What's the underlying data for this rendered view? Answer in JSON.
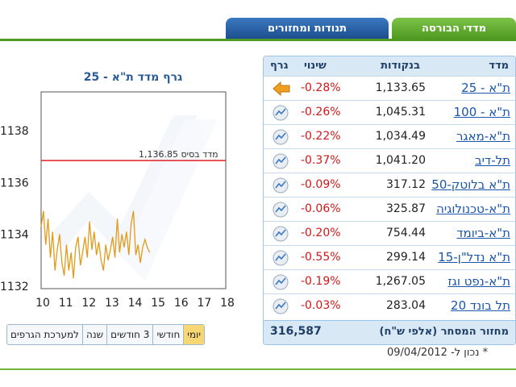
{
  "tabs": {
    "indices": "מדדי הבורסה",
    "movers": "תנודות ומחזורים"
  },
  "chart": {
    "title": "גרף מדד ת\"א - 25",
    "base_label": "מדד בסיס 1,136.85"
  },
  "chart_data": {
    "type": "line",
    "title": "גרף מדד ת\"א - 25",
    "x_ticks": [
      "10",
      "11",
      "12",
      "13",
      "14",
      "15",
      "16",
      "17",
      "18"
    ],
    "y_ticks": [
      "1132",
      "1134",
      "1136",
      "1138"
    ],
    "xlim": [
      10,
      18
    ],
    "ylim": [
      1131.9,
      1139.5
    ],
    "base_value": 1136.85,
    "series": [
      {
        "x": [
          10.0,
          10.1,
          10.2,
          10.3,
          10.4,
          10.5,
          10.6,
          10.7,
          10.8,
          10.9,
          11.0,
          11.1,
          11.2,
          11.3,
          11.4,
          11.5,
          11.6,
          11.7,
          11.8,
          11.9,
          12.0,
          12.1,
          12.2,
          12.3,
          12.4,
          12.5,
          12.6,
          12.7,
          12.8,
          12.9,
          13.0,
          13.1,
          13.2,
          13.3,
          13.4,
          13.5,
          13.6,
          13.7,
          13.8,
          13.9,
          14.0,
          14.1,
          14.2,
          14.3,
          14.4,
          14.5,
          14.6,
          14.7
        ],
        "y": [
          1134.3,
          1134.9,
          1133.6,
          1134.6,
          1133.1,
          1134.1,
          1132.6,
          1133.4,
          1134.0,
          1132.9,
          1132.4,
          1133.6,
          1132.6,
          1133.3,
          1132.3,
          1133.5,
          1133.9,
          1132.8,
          1133.3,
          1133.9,
          1133.1,
          1134.5,
          1133.4,
          1134.1,
          1133.2,
          1133.7,
          1133.0,
          1132.6,
          1133.6,
          1133.0,
          1133.4,
          1133.9,
          1133.1,
          1134.6,
          1133.3,
          1134.0,
          1133.5,
          1134.1,
          1133.2,
          1134.4,
          1134.9,
          1133.2,
          1133.6,
          1132.9,
          1133.5,
          1133.8,
          1133.5,
          1133.3
        ]
      }
    ],
    "base_color": "#e02020",
    "line_color": "#e39a1a"
  },
  "range_buttons": [
    {
      "label": "יומי",
      "active": true
    },
    {
      "label": "חודשי",
      "active": false
    },
    {
      "label": "3 חודשים",
      "active": false
    },
    {
      "label": "שנה",
      "active": false
    },
    {
      "label": "למערכת הגרפים",
      "active": false
    }
  ],
  "table": {
    "headers": {
      "index": "מדד",
      "points": "בנקודות",
      "change": "שינוי",
      "graph": "גרף"
    },
    "rows": [
      {
        "name": "ת\"א - 25",
        "value": "1,133.65",
        "change": "-0.28%",
        "icon": "arrow-left-icon"
      },
      {
        "name": "ת\"א - 100",
        "value": "1,045.31",
        "change": "-0.26%",
        "icon": "mini-chart-icon"
      },
      {
        "name": "ת\"א-מאגר",
        "value": "1,034.49",
        "change": "-0.22%",
        "icon": "mini-chart-icon"
      },
      {
        "name": "תל-דיב",
        "value": "1,041.20",
        "change": "-0.37%",
        "icon": "mini-chart-icon"
      },
      {
        "name": "ת\"א בלוטק-50",
        "value": "317.12",
        "change": "-0.09%",
        "icon": "mini-chart-icon"
      },
      {
        "name": "ת\"א-טכנולוגיה",
        "value": "325.87",
        "change": "-0.06%",
        "icon": "mini-chart-icon"
      },
      {
        "name": "ת\"א-ביומד",
        "value": "754.44",
        "change": "-0.20%",
        "icon": "mini-chart-icon"
      },
      {
        "name": "ת\"א נדל\"ן-15",
        "value": "299.14",
        "change": "-0.55%",
        "icon": "mini-chart-icon"
      },
      {
        "name": "ת\"א-נפט וגז",
        "value": "1,267.05",
        "change": "-0.19%",
        "icon": "mini-chart-icon"
      },
      {
        "name": "תל בונד 20",
        "value": "283.04",
        "change": "-0.03%",
        "icon": "mini-chart-icon"
      }
    ],
    "turnover_label": "מחזור המסחר (אלפי ש\"ח)",
    "turnover_value": "316,587"
  },
  "as_of": "* נכון ל- 09/04/2012"
}
